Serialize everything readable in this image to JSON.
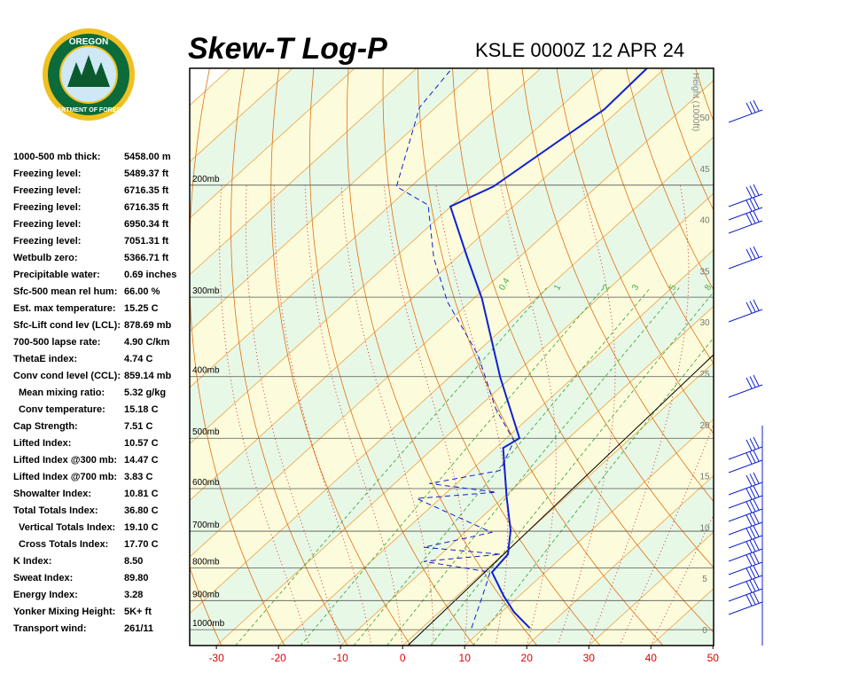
{
  "header": {
    "title": "Skew-T Log-P",
    "station": "KSLE 0000Z 12 APR 24"
  },
  "logo": {
    "top": "OREGON",
    "bottom": "DEPARTMENT OF FORESTRY"
  },
  "stats": [
    {
      "label": "1000-500 mb thick:",
      "value": "5458.00 m"
    },
    {
      "label": "Freezing level:",
      "value": "5489.37 ft"
    },
    {
      "label": "Freezing level:",
      "value": "6716.35 ft"
    },
    {
      "label": "Freezing level:",
      "value": "6716.35 ft"
    },
    {
      "label": "Freezing level:",
      "value": "6950.34 ft"
    },
    {
      "label": "Freezing level:",
      "value": "7051.31 ft"
    },
    {
      "label": "Wetbulb zero:",
      "value": "5366.71 ft"
    },
    {
      "label": "Precipitable water:",
      "value": "0.69 inches"
    },
    {
      "label": "Sfc-500 mean rel hum:",
      "value": "66.00 %"
    },
    {
      "label": "Est. max temperature:",
      "value": "15.25 C"
    },
    {
      "label": "Sfc-Lift cond lev (LCL):",
      "value": "878.69 mb"
    },
    {
      "label": "700-500 lapse rate:",
      "value": "4.90 C/km"
    },
    {
      "label": "ThetaE index:",
      "value": "4.74 C"
    },
    {
      "label": "Conv cond level (CCL):",
      "value": "859.14 mb"
    },
    {
      "label": "Mean mixing ratio:",
      "value": "5.32 g/kg"
    },
    {
      "label": "Conv temperature:",
      "value": "15.18 C"
    },
    {
      "label": "Cap Strength:",
      "value": "7.51 C"
    },
    {
      "label": "Lifted Index:",
      "value": "10.57 C"
    },
    {
      "label": "Lifted Index @300 mb:",
      "value": "14.47 C"
    },
    {
      "label": "Lifted Index @700 mb:",
      "value": "3.83 C"
    },
    {
      "label": "Showalter Index:",
      "value": "10.81 C"
    },
    {
      "label": "Total Totals Index:",
      "value": "36.80 C"
    },
    {
      "label": "Vertical Totals Index:",
      "value": "19.10 C"
    },
    {
      "label": "Cross Totals Index:",
      "value": "17.70 C"
    },
    {
      "label": "K Index:",
      "value": "8.50"
    },
    {
      "label": "Sweat Index:",
      "value": "89.80"
    },
    {
      "label": "Energy Index:",
      "value": "3.28"
    },
    {
      "label": "Yonker Mixing Height:",
      "value": "5K+ ft"
    },
    {
      "label": "Transport wind:",
      "value": "261/11"
    }
  ],
  "chart_data": {
    "type": "skewt",
    "xlim": [
      -34.3,
      50.1
    ],
    "ylim": [
      1059,
      131
    ],
    "xticks": [
      -30,
      -20,
      -10,
      0,
      10,
      20,
      30,
      40,
      50
    ],
    "pressure_levels": [
      {
        "value": 1000,
        "label": "1000mb"
      },
      {
        "value": 900,
        "label": "900mb"
      },
      {
        "value": 800,
        "label": "800mb"
      },
      {
        "value": 700,
        "label": "700mb"
      },
      {
        "value": 600,
        "label": "600mb"
      },
      {
        "value": 500,
        "label": "500mb"
      },
      {
        "value": 400,
        "label": "400mb"
      },
      {
        "value": 300,
        "label": "300mb"
      },
      {
        "value": 200,
        "label": "200mb"
      }
    ],
    "height_label": "Height (1000ft)",
    "height_ticks": [
      0,
      5,
      10,
      15,
      20,
      25,
      30,
      35,
      40,
      45,
      50
    ],
    "mixing_ratios": [
      0.4,
      1,
      2,
      3,
      5,
      8
    ],
    "series": [
      {
        "name": "Temperature",
        "color": "#1020d0",
        "pressure": [
          994,
          938,
          885,
          812,
          761,
          698,
          618,
          518,
          500,
          401,
          302,
          260,
          216,
          201,
          152,
          131
        ],
        "values": [
          17.4,
          12.0,
          7.5,
          1.4,
          0.8,
          -3.0,
          -9.6,
          -18.8,
          -17.9,
          -31.8,
          -48.6,
          -58.3,
          -70.1,
          -66.7,
          -62.5,
          -62.9
        ]
      },
      {
        "name": "Dewpoint",
        "color": "#1020d0",
        "pressure": [
          994,
          880,
          812,
          781,
          761,
          742,
          703,
          622,
          608,
          589,
          562,
          505,
          449,
          370,
          305,
          260,
          215,
          201,
          151,
          131
        ],
        "values": [
          8.0,
          3.9,
          1.1,
          -11.5,
          -0.4,
          -14.0,
          -5.7,
          -23.8,
          -12.1,
          -24.4,
          -15.3,
          -18.3,
          -27.0,
          -39.3,
          -53.7,
          -63.7,
          -73.9,
          -82.3,
          -92.6,
          -94.3
        ]
      }
    ]
  }
}
